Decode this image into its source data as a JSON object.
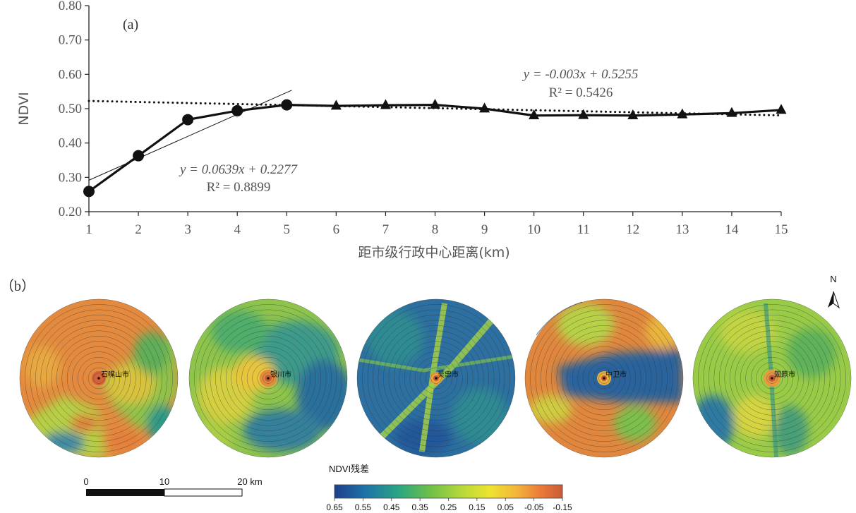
{
  "panel_a_label": "(a)",
  "panel_b_label": "（b）",
  "chart_data": {
    "type": "line",
    "xlabel": "距市级行政中心距离(km)",
    "ylabel": "NDVI",
    "xlim": [
      1,
      15
    ],
    "ylim": [
      0.2,
      0.8
    ],
    "x_ticks": [
      "1",
      "2",
      "3",
      "4",
      "5",
      "6",
      "7",
      "8",
      "9",
      "10",
      "11",
      "12",
      "13",
      "14",
      "15"
    ],
    "y_ticks": [
      "0.20",
      "0.30",
      "0.40",
      "0.50",
      "0.60",
      "0.70",
      "0.80"
    ],
    "series": [
      {
        "marker": "circle",
        "x": [
          1,
          2,
          3,
          4,
          5
        ],
        "values": [
          0.259,
          0.363,
          0.468,
          0.494,
          0.511
        ]
      },
      {
        "marker": "triangle",
        "x": [
          5,
          6,
          7,
          8,
          9,
          10,
          11,
          12,
          13,
          14,
          15
        ],
        "values": [
          0.511,
          0.508,
          0.51,
          0.511,
          0.5,
          0.48,
          0.481,
          0.48,
          0.483,
          0.487,
          0.496
        ]
      }
    ],
    "trendlines": [
      {
        "style": "solid-thin",
        "slope": 0.0639,
        "intercept": 0.2277,
        "x_range": [
          1,
          5.1
        ],
        "equation": "y = 0.0639x + 0.2277",
        "r2": "R² = 0.8899"
      },
      {
        "style": "dotted",
        "slope": -0.003,
        "intercept": 0.5255,
        "x_range": [
          1,
          15
        ],
        "equation": "y = -0.003x + 0.5255",
        "r2": "R² = 0.5426"
      }
    ],
    "grid": false
  },
  "maps": {
    "cities": [
      "石嘴山市",
      "银川市",
      "吴忠市",
      "中卫市",
      "固原市"
    ],
    "north_label": "N",
    "scalebar": {
      "labels": [
        "0",
        "10",
        "20 km"
      ]
    },
    "colorbar": {
      "title": "NDVI残差",
      "tick_labels": [
        "0.65",
        "0.55",
        "0.45",
        "0.35",
        "0.25",
        "0.15",
        "0.05",
        "-0.05",
        "-0.15"
      ],
      "colors": [
        "#1f3f8c",
        "#1e74a8",
        "#2ba583",
        "#6ec048",
        "#b8d83a",
        "#ede42f",
        "#f4b43a",
        "#ec7c3a",
        "#c95a37"
      ]
    }
  }
}
